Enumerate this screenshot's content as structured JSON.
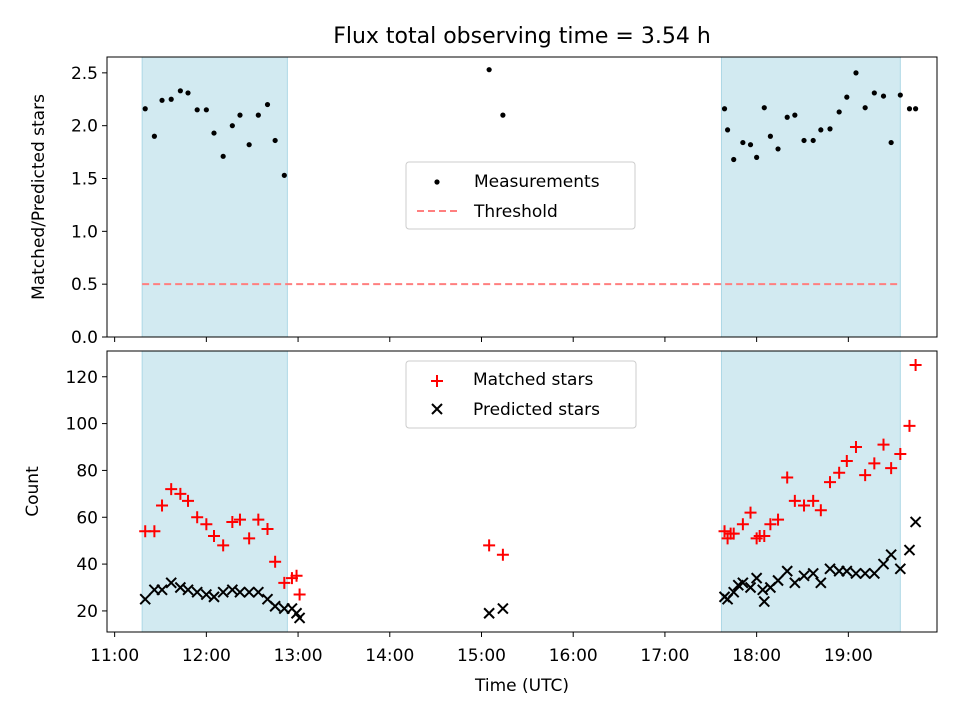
{
  "title": "Flux total observing time = 3.54 h",
  "colors": {
    "shade": "#add8e6",
    "measurement": "#000000",
    "threshold": "#ff7f7f",
    "matched": "#ff0000",
    "predicted": "#000000"
  },
  "chart_data": [
    {
      "type": "scatter",
      "name": "ratio-panel",
      "ylabel": "Matched/Predicted stars",
      "ylim": [
        0,
        2.65
      ],
      "yticks": [
        "0.0",
        "0.5",
        "1.0",
        "1.5",
        "2.0",
        "2.5"
      ],
      "xlim": [
        "10:55",
        "19:58"
      ],
      "grid": false,
      "legend_position": "center",
      "shaded_intervals": [
        [
          "11:18",
          "12:53"
        ],
        [
          "17:37",
          "19:34"
        ]
      ],
      "threshold": 0.5,
      "legend": [
        "Measurements",
        "Threshold"
      ],
      "series": [
        {
          "name": "Measurements",
          "x": [
            "11:20",
            "11:26",
            "11:31",
            "11:37",
            "11:43",
            "11:48",
            "11:54",
            "12:00",
            "12:05",
            "12:11",
            "12:17",
            "12:22",
            "12:28",
            "12:34",
            "12:40",
            "12:45",
            "12:51",
            "15:05",
            "15:14",
            "17:39",
            "17:41",
            "17:45",
            "17:51",
            "17:56",
            "18:00",
            "18:05",
            "18:09",
            "18:14",
            "18:20",
            "18:25",
            "18:31",
            "18:37",
            "18:42",
            "18:48",
            "18:54",
            "18:59",
            "19:05",
            "19:11",
            "19:17",
            "19:23",
            "19:28",
            "19:34",
            "19:40",
            "19:44"
          ],
          "y": [
            2.16,
            1.9,
            2.24,
            2.25,
            2.33,
            2.31,
            2.15,
            2.15,
            1.93,
            1.71,
            2.0,
            2.1,
            1.82,
            2.1,
            2.2,
            1.86,
            1.53,
            2.53,
            2.1,
            2.16,
            1.96,
            1.68,
            1.84,
            1.82,
            1.7,
            2.17,
            1.9,
            1.78,
            2.08,
            2.1,
            1.86,
            1.86,
            1.96,
            1.97,
            2.13,
            2.27,
            2.5,
            2.17,
            2.31,
            2.28,
            1.84,
            2.29,
            2.16,
            2.16
          ]
        }
      ]
    },
    {
      "type": "scatter",
      "name": "count-panel",
      "ylabel": "Count",
      "xlabel": "Time (UTC)",
      "ylim": [
        11,
        131
      ],
      "yticks": [
        "20",
        "40",
        "60",
        "80",
        "100",
        "120"
      ],
      "xticks": [
        "11:00",
        "12:00",
        "13:00",
        "14:00",
        "15:00",
        "16:00",
        "17:00",
        "18:00",
        "19:00"
      ],
      "xlim": [
        "10:55",
        "19:58"
      ],
      "grid": false,
      "legend_position": "upper center",
      "shaded_intervals": [
        [
          "11:18",
          "12:53"
        ],
        [
          "17:37",
          "19:34"
        ]
      ],
      "legend": [
        "Matched stars",
        "Predicted stars"
      ],
      "series": [
        {
          "name": "Matched stars",
          "marker": "+",
          "x": [
            "11:20",
            "11:26",
            "11:31",
            "11:37",
            "11:43",
            "11:48",
            "11:54",
            "12:00",
            "12:05",
            "12:11",
            "12:17",
            "12:22",
            "12:28",
            "12:34",
            "12:40",
            "12:45",
            "12:51",
            "15:05",
            "15:14",
            "17:39",
            "17:41",
            "17:45",
            "17:51",
            "17:56",
            "18:00",
            "18:05",
            "18:09",
            "18:14",
            "18:20",
            "18:25",
            "18:31",
            "18:37",
            "18:42",
            "18:48",
            "18:54",
            "18:59",
            "19:05",
            "19:11",
            "19:17",
            "19:23",
            "19:28",
            "19:34",
            "19:40",
            "19:44",
            "12:56",
            "12:59",
            "13:01",
            "17:43",
            "18:02"
          ],
          "y": [
            54,
            54,
            65,
            72,
            70,
            67,
            60,
            57,
            52,
            48,
            58,
            59,
            51,
            59,
            55,
            41,
            32,
            48,
            44,
            54,
            51,
            53,
            57,
            62,
            51,
            52,
            57,
            59,
            77,
            67,
            65,
            67,
            63,
            75,
            79,
            84,
            90,
            78,
            83,
            91,
            81,
            87,
            99,
            125,
            34,
            35,
            27,
            53,
            52
          ]
        },
        {
          "name": "Predicted stars",
          "marker": "x",
          "x": [
            "11:20",
            "11:26",
            "11:31",
            "11:37",
            "11:43",
            "11:48",
            "11:54",
            "12:00",
            "12:05",
            "12:11",
            "12:17",
            "12:22",
            "12:28",
            "12:34",
            "12:40",
            "12:45",
            "12:51",
            "15:05",
            "15:14",
            "17:39",
            "17:41",
            "17:45",
            "17:51",
            "17:56",
            "18:00",
            "18:05",
            "18:09",
            "18:14",
            "18:20",
            "18:25",
            "18:31",
            "18:37",
            "18:42",
            "18:48",
            "18:54",
            "18:59",
            "19:05",
            "19:11",
            "19:17",
            "19:23",
            "19:28",
            "19:34",
            "19:40",
            "19:44",
            "12:56",
            "12:59",
            "13:01",
            "17:48",
            "18:04"
          ],
          "y": [
            25,
            29,
            29,
            32,
            30,
            29,
            28,
            27,
            26,
            28,
            29,
            28,
            28,
            28,
            25,
            22,
            21,
            19,
            21,
            26,
            25,
            28,
            32,
            30,
            34,
            24,
            30,
            33,
            37,
            32,
            35,
            36,
            32,
            38,
            37,
            37,
            36,
            36,
            36,
            40,
            44,
            38,
            46,
            58,
            21,
            19,
            17,
            31,
            29
          ]
        }
      ]
    }
  ]
}
